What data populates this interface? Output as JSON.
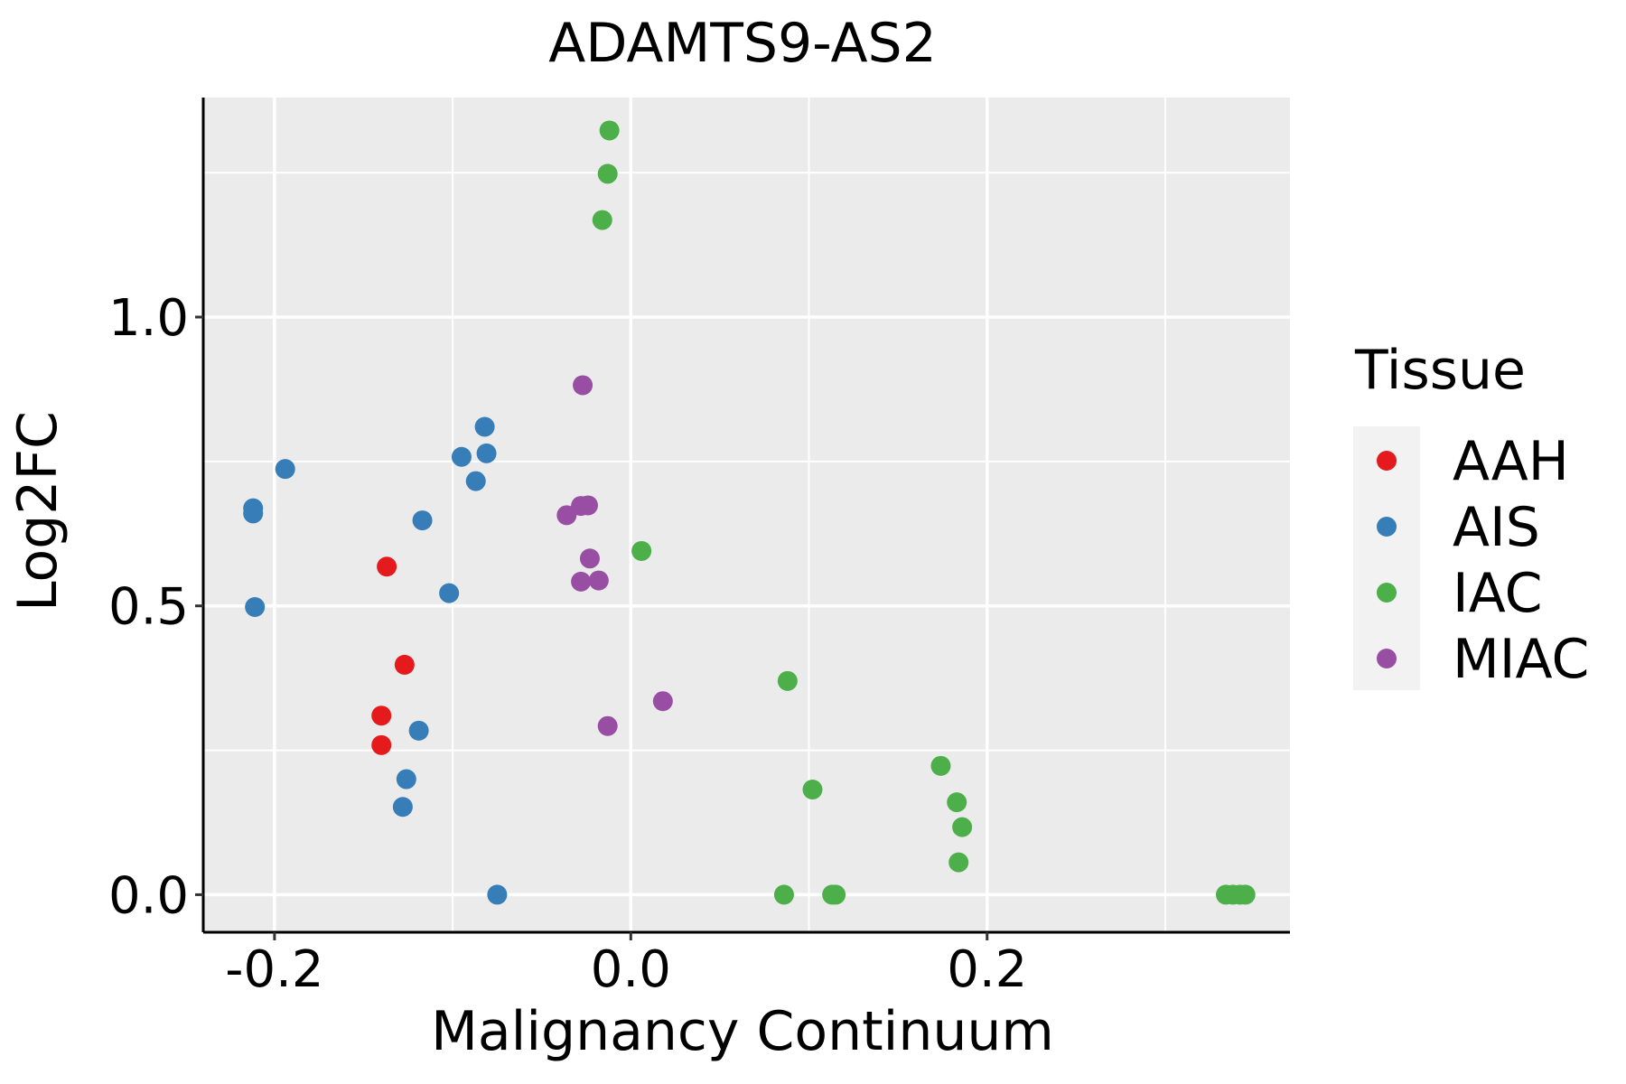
{
  "chart_data": {
    "type": "scatter",
    "title": "ADAMTS9-AS2",
    "xlabel": "Malignancy Continuum",
    "ylabel": "Log2FC",
    "xlim": [
      -0.24,
      0.37
    ],
    "ylim": [
      -0.065,
      1.38
    ],
    "x_ticks": [
      {
        "value": -0.2,
        "label": "-0.2"
      },
      {
        "value": 0.0,
        "label": "0.0"
      },
      {
        "value": 0.2,
        "label": "0.2"
      }
    ],
    "x_minor": [
      -0.1,
      0.1,
      0.3
    ],
    "y_ticks": [
      {
        "value": 0.0,
        "label": "0.0"
      },
      {
        "value": 0.5,
        "label": "0.5"
      },
      {
        "value": 1.0,
        "label": "1.0"
      }
    ],
    "y_minor": [
      0.25,
      0.75,
      1.25
    ],
    "grid": true,
    "legend": {
      "title": "Tissue",
      "position": "right"
    },
    "series": [
      {
        "name": "AAH",
        "color": "#E41A1C",
        "points": [
          [
            -0.137,
            0.568
          ],
          [
            -0.127,
            0.398
          ],
          [
            -0.14,
            0.31
          ],
          [
            -0.14,
            0.259
          ]
        ]
      },
      {
        "name": "AIS",
        "color": "#377EB8",
        "points": [
          [
            -0.194,
            0.737
          ],
          [
            -0.212,
            0.669
          ],
          [
            -0.212,
            0.66
          ],
          [
            -0.211,
            0.498
          ],
          [
            -0.117,
            0.648
          ],
          [
            -0.102,
            0.522
          ],
          [
            -0.095,
            0.758
          ],
          [
            -0.087,
            0.716
          ],
          [
            -0.082,
            0.81
          ],
          [
            -0.081,
            0.764
          ],
          [
            -0.119,
            0.284
          ],
          [
            -0.126,
            0.2
          ],
          [
            -0.128,
            0.152
          ],
          [
            -0.075,
            0.0
          ]
        ]
      },
      {
        "name": "IAC",
        "color": "#4DAF4A",
        "points": [
          [
            -0.012,
            1.323
          ],
          [
            -0.013,
            1.248
          ],
          [
            -0.016,
            1.168
          ],
          [
            0.006,
            0.595
          ],
          [
            0.088,
            0.37
          ],
          [
            0.102,
            0.182
          ],
          [
            0.174,
            0.223
          ],
          [
            0.183,
            0.16
          ],
          [
            0.186,
            0.117
          ],
          [
            0.184,
            0.056
          ],
          [
            0.086,
            0.0
          ],
          [
            0.113,
            0.0
          ],
          [
            0.115,
            0.0
          ],
          [
            0.334,
            0.0
          ],
          [
            0.338,
            0.0
          ],
          [
            0.342,
            0.0
          ],
          [
            0.345,
            0.0
          ]
        ]
      },
      {
        "name": "MIAC",
        "color": "#984EA3",
        "points": [
          [
            -0.027,
            0.882
          ],
          [
            -0.028,
            0.673
          ],
          [
            -0.024,
            0.674
          ],
          [
            -0.036,
            0.657
          ],
          [
            -0.023,
            0.582
          ],
          [
            -0.028,
            0.542
          ],
          [
            -0.018,
            0.544
          ],
          [
            0.018,
            0.335
          ],
          [
            -0.013,
            0.292
          ]
        ]
      }
    ]
  }
}
